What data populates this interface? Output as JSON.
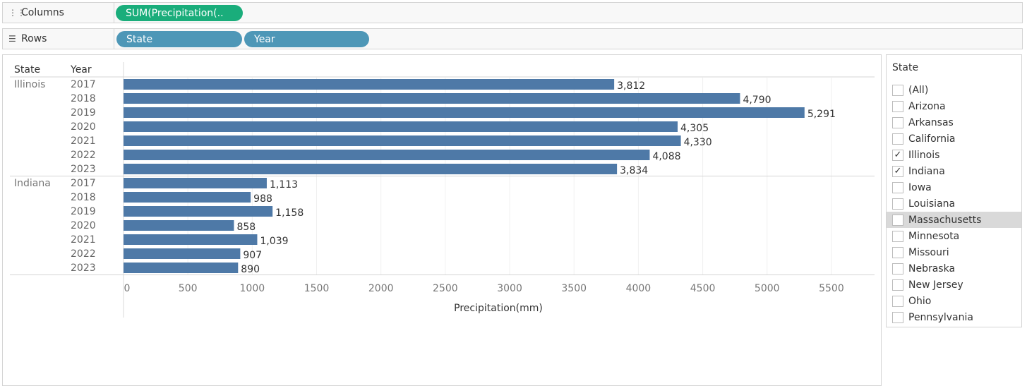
{
  "shelves": {
    "columns": {
      "label": "Columns",
      "pills": [
        "SUM(Precipitation(.."
      ]
    },
    "rows": {
      "label": "Rows",
      "pills": [
        "State",
        "Year"
      ]
    }
  },
  "chart_data": {
    "type": "bar",
    "orientation": "horizontal",
    "row_headers": [
      "State",
      "Year"
    ],
    "xlabel": "Precipitation(mm)",
    "xlim": [
      0,
      5800
    ],
    "x_ticks": [
      0,
      500,
      1000,
      1500,
      2000,
      2500,
      3000,
      3500,
      4000,
      4500,
      5000,
      5500
    ],
    "bar_color": "#4e79a7",
    "groups": [
      {
        "state": "Illinois",
        "years": [
          "2017",
          "2018",
          "2019",
          "2020",
          "2021",
          "2022",
          "2023"
        ],
        "values": [
          3812,
          4790,
          5291,
          4305,
          4330,
          4088,
          3834
        ],
        "labels": [
          "3,812",
          "4,790",
          "5,291",
          "4,305",
          "4,330",
          "4,088",
          "3,834"
        ]
      },
      {
        "state": "Indiana",
        "years": [
          "2017",
          "2018",
          "2019",
          "2020",
          "2021",
          "2022",
          "2023"
        ],
        "values": [
          1113,
          988,
          1158,
          858,
          1039,
          907,
          890
        ],
        "labels": [
          "1,113",
          "988",
          "1,158",
          "858",
          "1,039",
          "907",
          "890"
        ]
      }
    ]
  },
  "filter": {
    "title": "State",
    "items": [
      {
        "label": "(All)",
        "checked": false
      },
      {
        "label": "Arizona",
        "checked": false
      },
      {
        "label": "Arkansas",
        "checked": false
      },
      {
        "label": "California",
        "checked": false
      },
      {
        "label": "Illinois",
        "checked": true
      },
      {
        "label": "Indiana",
        "checked": true
      },
      {
        "label": "Iowa",
        "checked": false
      },
      {
        "label": "Louisiana",
        "checked": false
      },
      {
        "label": "Massachusetts",
        "checked": false,
        "hover": true
      },
      {
        "label": "Minnesota",
        "checked": false
      },
      {
        "label": "Missouri",
        "checked": false
      },
      {
        "label": "Nebraska",
        "checked": false
      },
      {
        "label": "New Jersey",
        "checked": false
      },
      {
        "label": "Ohio",
        "checked": false
      },
      {
        "label": "Pennsylvania",
        "checked": false
      }
    ]
  }
}
